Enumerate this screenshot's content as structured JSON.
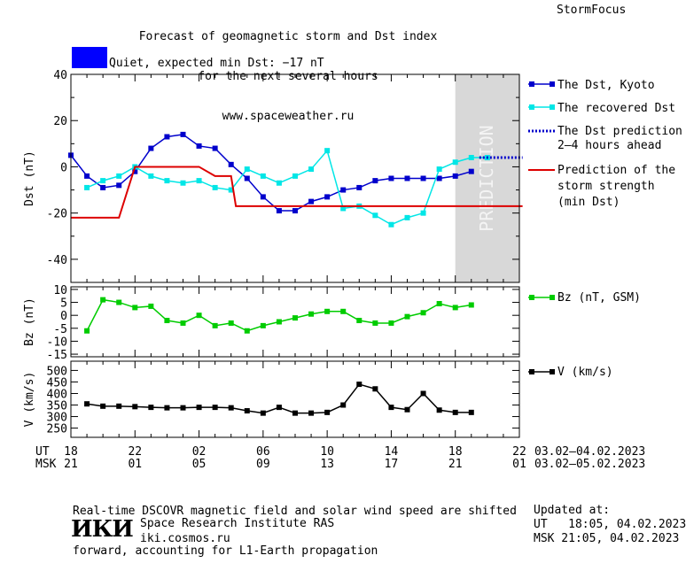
{
  "header": {
    "title_lines": [
      "Forecast of geomagnetic storm and Dst index",
      "for the next several hours",
      "www.spaceweather.ru"
    ],
    "brand": "StormFocus"
  },
  "status": {
    "text": "Quiet, expected min Dst: −17 nT",
    "color": "#0000ff"
  },
  "time_axis": {
    "ut_label": "UT",
    "msk_label": "MSK",
    "ut_ticks": [
      "18",
      "22",
      "02",
      "06",
      "10",
      "14",
      "18",
      "22"
    ],
    "msk_ticks": [
      "21",
      "01",
      "05",
      "09",
      "13",
      "17",
      "21",
      "01"
    ],
    "ut_range": "03.02–04.02.2023",
    "msk_range": "03.02–05.02.2023"
  },
  "chart_data": [
    {
      "type": "line",
      "ylabel": "Dst (nT)",
      "ylim": [
        -50,
        40
      ],
      "yticks": [
        40,
        20,
        0,
        -20,
        -40
      ],
      "xlim": [
        18,
        46
      ],
      "prediction_zone": {
        "x": [
          42,
          46
        ],
        "label": "PREDICTION",
        "color": "#d8d8d8"
      },
      "series": [
        {
          "name": "The Dst, Kyoto",
          "color": "#0000cc",
          "marker": "square",
          "x": [
            18,
            19,
            20,
            21,
            22,
            23,
            24,
            25,
            26,
            27,
            28,
            29,
            30,
            31,
            32,
            33,
            34,
            35,
            36,
            37,
            38,
            39,
            40,
            41,
            42,
            43
          ],
          "y": [
            5,
            -4,
            -9,
            -8,
            -2,
            8,
            13,
            14,
            9,
            8,
            1,
            -5,
            -13,
            -19,
            -19,
            -15,
            -13,
            -10,
            -9,
            -6,
            -5,
            -5,
            -5,
            -5,
            -4,
            -2
          ]
        },
        {
          "name": "The recovered Dst",
          "color": "#00e6e6",
          "marker": "square",
          "x": [
            19,
            20,
            21,
            22,
            23,
            24,
            25,
            26,
            27,
            28,
            29,
            30,
            31,
            32,
            33,
            34,
            35,
            36,
            37,
            38,
            39,
            40,
            41,
            42,
            43,
            44
          ],
          "y": [
            -9,
            -6,
            -4,
            0,
            -4,
            -6,
            -7,
            -6,
            -9,
            -10,
            -1,
            -4,
            -7,
            -4,
            -1,
            7,
            -18,
            -17,
            -21,
            -25,
            -22,
            -20,
            -1,
            2,
            4,
            4
          ]
        },
        {
          "name": "The Dst prediction",
          "name2": "2–4 hours ahead",
          "color": "#0000cc",
          "style": "dotted",
          "x": [
            43.5,
            44,
            45,
            46.2
          ],
          "y": [
            4,
            4,
            4,
            4
          ]
        },
        {
          "name": "Prediction of the",
          "name2": "storm strength",
          "name3": "(min Dst)",
          "color": "#dd0000",
          "style": "step",
          "x": [
            18,
            21,
            22,
            26,
            27,
            28,
            28.3,
            46.2
          ],
          "y": [
            -22,
            -22,
            0,
            0,
            -4,
            -4,
            -17,
            -17
          ]
        }
      ]
    },
    {
      "type": "line",
      "ylabel": "Bz (nT)",
      "ylim": [
        -16,
        11
      ],
      "yticks": [
        10,
        5,
        0,
        -5,
        -10,
        -15
      ],
      "xlim": [
        18,
        46
      ],
      "series": [
        {
          "name": "Bz (nT, GSM)",
          "color": "#00cc00",
          "marker": "square",
          "x": [
            19,
            20,
            21,
            22,
            23,
            24,
            25,
            26,
            27,
            28,
            29,
            30,
            31,
            32,
            33,
            34,
            35,
            36,
            37,
            38,
            39,
            40,
            41,
            42,
            43,
            44
          ],
          "y": [
            -6,
            6,
            5,
            3,
            3.5,
            -2,
            -3,
            0,
            -4,
            -3,
            -6,
            -4,
            -2.5,
            -1,
            0.5,
            1.5,
            1.5,
            -2,
            -3,
            -3,
            -0.5,
            1,
            4.5,
            3,
            4,
            null
          ]
        }
      ]
    },
    {
      "type": "line",
      "ylabel": "V (km/s)",
      "ylim": [
        210,
        540
      ],
      "yticks": [
        500,
        450,
        400,
        350,
        300,
        250
      ],
      "xlim": [
        18,
        46
      ],
      "series": [
        {
          "name": "V (km/s)",
          "color": "#000000",
          "marker": "square",
          "x": [
            19,
            20,
            21,
            22,
            23,
            24,
            25,
            26,
            27,
            28,
            29,
            30,
            31,
            32,
            33,
            34,
            35,
            36,
            37,
            38,
            39,
            40,
            41,
            42,
            43
          ],
          "y": [
            355,
            345,
            345,
            343,
            340,
            338,
            338,
            340,
            340,
            338,
            325,
            315,
            340,
            315,
            315,
            318,
            350,
            440,
            420,
            340,
            330,
            400,
            328,
            318,
            318
          ]
        }
      ]
    }
  ],
  "legend": {
    "dst_kyoto": "The Dst, Kyoto",
    "recovered": "The recovered Dst",
    "prediction_1": "The Dst prediction",
    "prediction_2": "2–4 hours ahead",
    "storm_1": "Prediction of the",
    "storm_2": "storm strength",
    "storm_3": "(min Dst)",
    "bz": "Bz (nT, GSM)",
    "v": "V (km/s)"
  },
  "footer": {
    "note_1": "Real-time DSCOVR magnetic field and solar wind speed are shifted",
    "note_2": "forward, accounting for L1-Earth propagation",
    "logo": "ИКИ",
    "institute": "Space Research Institute RAS",
    "url": "iki.cosmos.ru",
    "updated_label": "Updated at:",
    "updated_ut": "UT   18:05, 04.02.2023",
    "updated_msk": "MSK 21:05, 04.02.2023"
  }
}
